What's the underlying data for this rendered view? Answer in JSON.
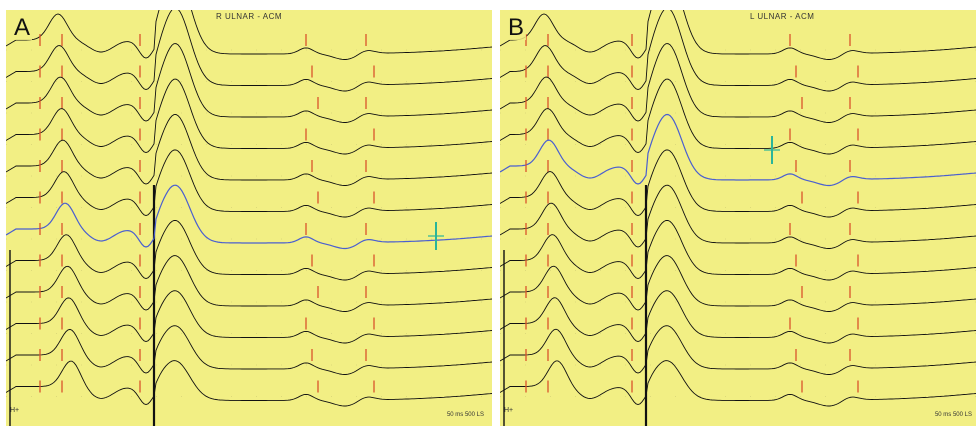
{
  "panels": [
    {
      "label": "A",
      "title": "R ULNAR - ACM",
      "scale": "50 ms 500 LS",
      "marker": "H+"
    },
    {
      "label": "B",
      "title": "L ULNAR - ACM",
      "scale": "50 ms 500 LS",
      "marker": "H+"
    }
  ],
  "colors": {
    "background": "#f2ef84",
    "trace": "#111111",
    "reference_trace": "#4a5fd0",
    "cursor": "#d9532b",
    "highlight_cursor": "#2ab59a"
  }
}
